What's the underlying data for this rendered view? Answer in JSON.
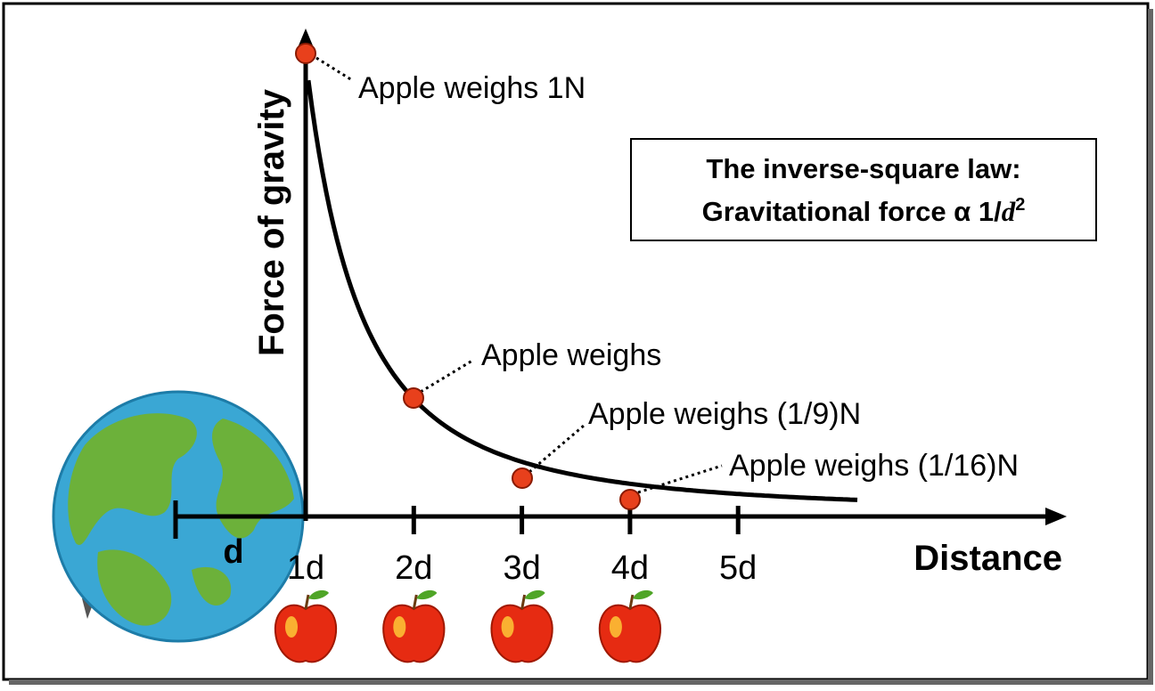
{
  "axes": {
    "y_label": "Force of gravity",
    "x_label": "Distance",
    "earth_label": "d",
    "ticks": [
      "1d",
      "2d",
      "3d",
      "4d",
      "5d"
    ]
  },
  "annotations": [
    "Apple weighs 1N",
    "Apple weighs",
    "Apple weighs (1/9)N",
    "Apple weighs (1/16)N"
  ],
  "law_box": {
    "line1": "The inverse-square law:",
    "line2_prefix": "Gravitational force α 1/",
    "line2_variable": "d",
    "line2_exponent": "2"
  }
}
